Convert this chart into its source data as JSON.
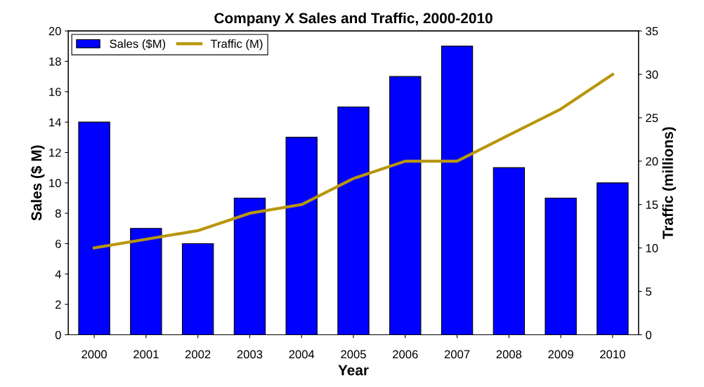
{
  "chart_data": {
    "type": "bar",
    "title": "Company X Sales and Traffic, 2000-2010",
    "xlabel": "Year",
    "ylabel": "Sales ($ M)",
    "y2label": "Traffic (millions)",
    "categories": [
      "2000",
      "2001",
      "2002",
      "2003",
      "2004",
      "2005",
      "2006",
      "2007",
      "2008",
      "2009",
      "2010"
    ],
    "series": [
      {
        "name": "Sales ($M)",
        "color": "#0000ff",
        "values": [
          14,
          7,
          6,
          9,
          13,
          15,
          17,
          19,
          11,
          9,
          10
        ]
      },
      {
        "name": "Traffic (M)",
        "type": "line",
        "axis": "y2",
        "color": "#b8960c",
        "values": [
          10,
          11,
          12,
          14,
          15,
          18,
          20,
          20,
          23,
          26,
          30
        ]
      }
    ],
    "ylim": [
      0,
      20
    ],
    "yticks": [
      0,
      2,
      4,
      6,
      8,
      10,
      12,
      14,
      16,
      18,
      20
    ],
    "y2lim": [
      0,
      35
    ],
    "y2ticks": [
      0,
      5,
      10,
      15,
      20,
      25,
      30,
      35
    ],
    "grid": false,
    "legend": "top left",
    "marker": "none",
    "line_style": "solid"
  }
}
